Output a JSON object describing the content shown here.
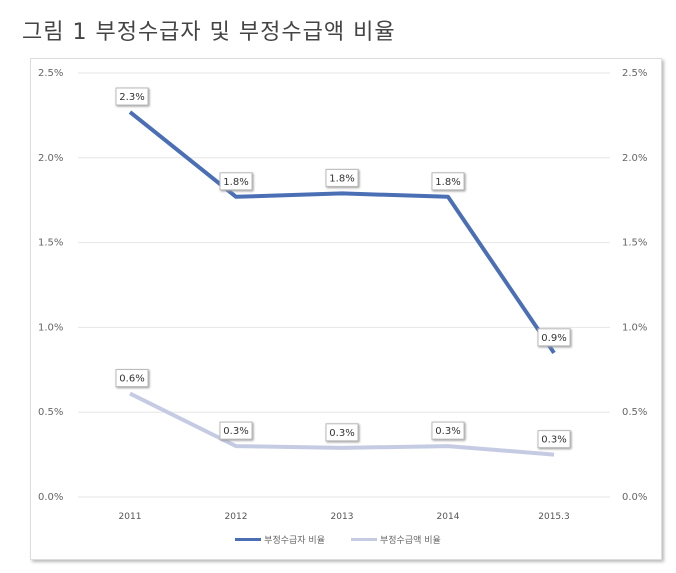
{
  "title": "그림 1 부정수급자 및 부정수급액 비율",
  "chart_data": {
    "type": "line",
    "categories": [
      "2011",
      "2012",
      "2013",
      "2014",
      "2015.3"
    ],
    "ylim": [
      0,
      2.5
    ],
    "yticks": [
      "0.0%",
      "0.5%",
      "1.0%",
      "1.5%",
      "2.0%",
      "2.5%"
    ],
    "ytick_values": [
      0,
      0.5,
      1,
      1.5,
      2,
      2.5
    ],
    "grid": true,
    "legend": "bottom",
    "series": [
      {
        "name": "부정수급자 비율",
        "values": [
          2.27,
          1.77,
          1.79,
          1.77,
          0.85
        ],
        "labels": [
          "2.3%",
          "1.8%",
          "1.8%",
          "1.8%",
          "0.9%"
        ],
        "color": "#4a6fb5"
      },
      {
        "name": "부정수급액 비율",
        "values": [
          0.61,
          0.3,
          0.29,
          0.3,
          0.25
        ],
        "labels": [
          "0.6%",
          "0.3%",
          "0.3%",
          "0.3%",
          "0.3%"
        ],
        "color": "#c5cbe3"
      }
    ]
  }
}
